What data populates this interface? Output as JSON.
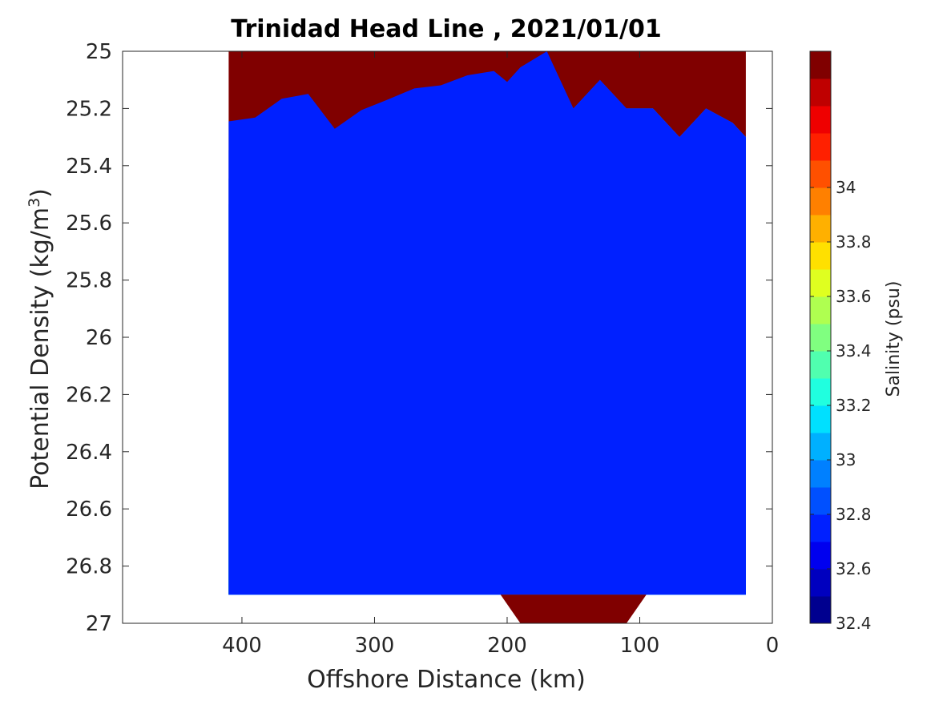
{
  "chart_data": {
    "type": "contour",
    "title": "Trinidad Head Line , 2021/01/01",
    "xlabel": "Offshore Distance (km)",
    "ylabel_main": "Potential Density (kg/m",
    "ylabel_sup": "3",
    "ylabel_tail": ")",
    "colorbar_label": "Salinity (psu)",
    "x_axis": {
      "min": 0,
      "max": 490,
      "reversed": true,
      "ticks": [
        400,
        300,
        200,
        100,
        0
      ]
    },
    "y_axis": {
      "min": 25,
      "max": 27,
      "reversed": true,
      "ticks": [
        "25",
        "25.2",
        "25.4",
        "25.6",
        "25.8",
        "26",
        "26.2",
        "26.4",
        "26.6",
        "26.8",
        "27"
      ]
    },
    "colorbar": {
      "min": 32.4,
      "max": 34.5,
      "step": 0.1,
      "tick_values": [
        32.4,
        32.6,
        32.8,
        33,
        33.2,
        33.4,
        33.6,
        33.8,
        34
      ],
      "tick_labels": [
        "32.4",
        "32.6",
        "32.8",
        "33",
        "33.2",
        "33.4",
        "33.6",
        "33.8",
        "34"
      ],
      "colors": [
        "#00008f",
        "#0000bf",
        "#0000ef",
        "#0020ff",
        "#0050ff",
        "#0080ff",
        "#00b0ff",
        "#00e0ff",
        "#20ffdf",
        "#50ffaf",
        "#80ff80",
        "#afff50",
        "#dfff20",
        "#ffe000",
        "#ffb000",
        "#ff8000",
        "#ff5000",
        "#ff2000",
        "#ef0000",
        "#bf0000",
        "#800000"
      ]
    },
    "data_extent": {
      "x_min": 20,
      "x_max": 410,
      "y_min": 25.0,
      "y_max": 26.9
    },
    "contour_levels": [
      32.6,
      32.7,
      32.8,
      32.9,
      33.0,
      33.1,
      33.2,
      33.3,
      33.4,
      33.5,
      33.6,
      33.7,
      33.8,
      33.9,
      34.0,
      34.1,
      34.2
    ]
  }
}
